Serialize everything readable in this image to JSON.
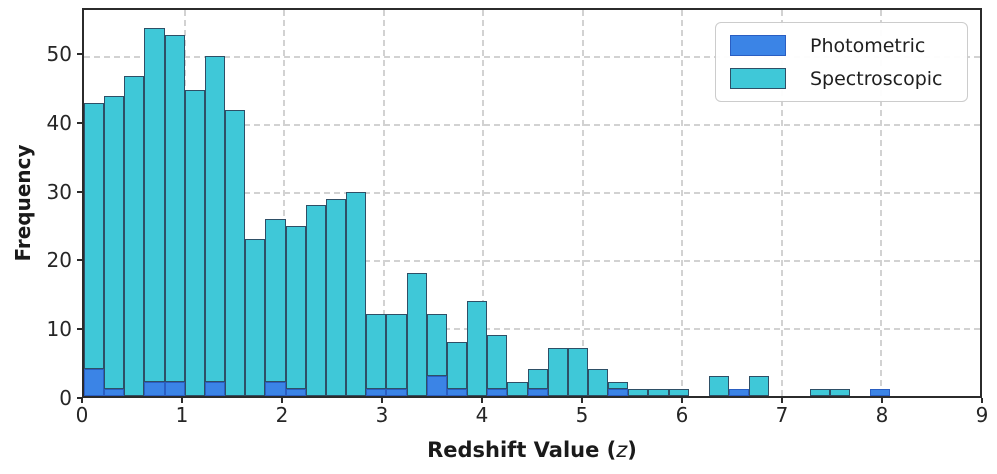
{
  "chart_data": {
    "type": "bar",
    "subtype": "stacked-histogram",
    "title": "",
    "xlabel_prefix": "Redshift Value (",
    "xlabel_var": "z",
    "xlabel_suffix": ")",
    "ylabel": "Frequency",
    "xlim": [
      0,
      9
    ],
    "ylim": [
      0,
      56.7
    ],
    "x_ticks": [
      0,
      1,
      2,
      3,
      4,
      5,
      6,
      7,
      8,
      9
    ],
    "y_ticks": [
      0,
      10,
      20,
      30,
      40,
      50
    ],
    "grid": true,
    "bin_start": 0,
    "bin_width": 0.2025,
    "stack_order": [
      "Photometric",
      "Spectroscopic"
    ],
    "series": [
      {
        "name": "Photometric",
        "color": "#3b84e6",
        "edge_color": "#2a5ec2",
        "values": [
          4,
          1,
          0,
          2,
          2,
          0,
          2,
          0,
          0,
          2,
          1,
          0,
          0,
          0,
          1,
          1,
          0,
          3,
          1,
          0,
          1,
          0,
          1,
          0,
          0,
          0,
          1,
          0,
          0,
          0,
          0,
          0,
          1,
          0,
          0,
          0,
          0,
          0,
          0,
          1
        ]
      },
      {
        "name": "Spectroscopic",
        "color": "#3fc8d8",
        "edge_color": "#2e4f66",
        "values": [
          39,
          43,
          47,
          52,
          51,
          45,
          48,
          42,
          23,
          24,
          24,
          28,
          29,
          30,
          11,
          11,
          18,
          9,
          7,
          14,
          8,
          2,
          3,
          7,
          7,
          4,
          1,
          1,
          1,
          1,
          0,
          3,
          0,
          3,
          0,
          0,
          1,
          1,
          0,
          0
        ]
      }
    ],
    "totals": [
      43,
      44,
      47,
      54,
      53,
      45,
      50,
      42,
      23,
      26,
      25,
      28,
      29,
      30,
      12,
      12,
      18,
      12,
      8,
      14,
      9,
      2,
      4,
      7,
      7,
      4,
      2,
      1,
      1,
      1,
      0,
      3,
      1,
      3,
      0,
      0,
      1,
      1,
      0,
      1
    ],
    "legend": {
      "position": "upper right",
      "entries": [
        {
          "label": "Photometric",
          "color": "#3b84e6",
          "edge_color": "#2a5ec2"
        },
        {
          "label": "Spectroscopic",
          "color": "#3fc8d8",
          "edge_color": "#2e4f66"
        }
      ]
    }
  }
}
